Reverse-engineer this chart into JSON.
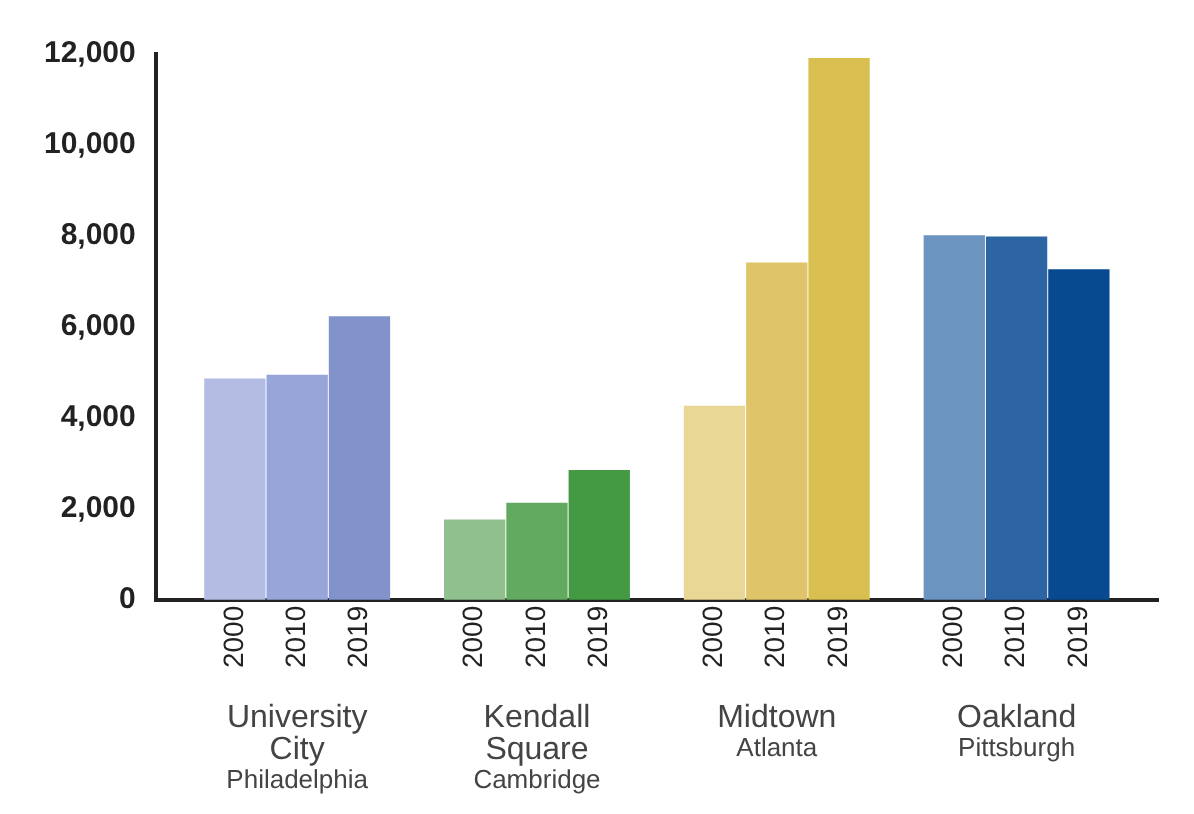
{
  "chart_data": {
    "type": "bar",
    "categories": [
      "2000",
      "2010",
      "2019",
      "2000",
      "2010",
      "2019",
      "2000",
      "2010",
      "2019",
      "2000",
      "2010",
      "2019"
    ],
    "values": [
      4850,
      4930,
      6220,
      1750,
      2120,
      2840,
      4250,
      7400,
      11900,
      8000,
      7970,
      7250
    ],
    "colors": [
      "#b3bde3",
      "#98a5d8",
      "#8293cc",
      "#90c08e",
      "#62aa5f",
      "#449a42",
      "#e8d795",
      "#dfc46a",
      "#d9be50",
      "#6b95c0",
      "#2d64a3",
      "#084a90"
    ],
    "ylim": [
      0,
      12000
    ],
    "yticks": [
      0,
      {
        "value": 2000,
        "label": "2,000"
      },
      {
        "value": 4000,
        "label": "4,000"
      },
      {
        "value": 6000,
        "label": "6,000"
      },
      {
        "value": 8000,
        "label": "8,000"
      },
      {
        "value": 10000,
        "label": "10,000"
      },
      {
        "value": 12000,
        "label": "12,000"
      }
    ],
    "grid": false,
    "annotations": [
      "University City",
      "Philadelphia",
      "Kendall Square",
      "Cambridge",
      "Midtown",
      "Atlanta",
      "Oakland",
      "Pittsburgh"
    ]
  }
}
